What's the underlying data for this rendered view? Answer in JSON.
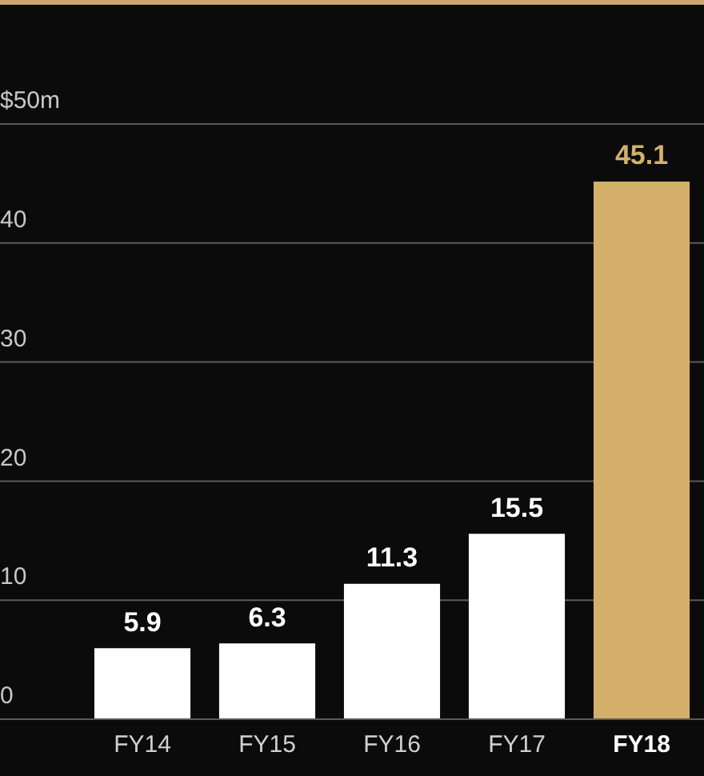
{
  "chart_data": {
    "type": "bar",
    "categories": [
      "FY14",
      "FY15",
      "FY16",
      "FY17",
      "FY18"
    ],
    "values": [
      5.9,
      6.3,
      11.3,
      15.5,
      45.1
    ],
    "colors": [
      "#ffffff",
      "#ffffff",
      "#ffffff",
      "#ffffff",
      "#d4b06a"
    ],
    "ylim": [
      0,
      50
    ],
    "yticks": [
      0,
      10,
      20,
      30,
      40,
      {
        "value": 50,
        "label": "$50m"
      }
    ],
    "grid": "y",
    "data_labels": true,
    "legend": false
  }
}
